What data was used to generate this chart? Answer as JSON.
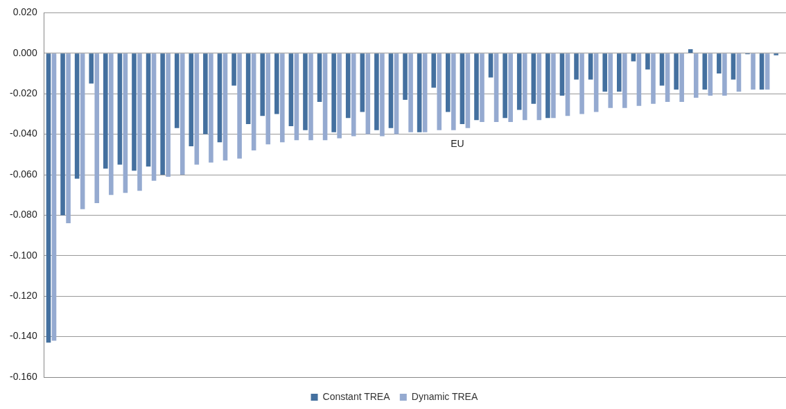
{
  "chart_data": {
    "type": "bar",
    "categories": [
      null,
      null,
      null,
      null,
      null,
      null,
      null,
      null,
      null,
      null,
      null,
      null,
      null,
      null,
      null,
      null,
      null,
      null,
      null,
      null,
      null,
      null,
      null,
      null,
      null,
      null,
      null,
      null,
      null,
      null,
      null,
      null,
      null,
      null,
      null,
      null,
      null,
      null,
      null,
      null,
      null,
      null,
      null,
      null,
      null,
      null,
      null,
      null,
      null,
      null,
      null,
      null
    ],
    "series": [
      {
        "name": "Constant TREA",
        "color": "#44709f",
        "values": [
          -0.143,
          -0.08,
          -0.062,
          -0.015,
          -0.057,
          -0.055,
          -0.058,
          -0.056,
          -0.06,
          -0.037,
          -0.046,
          -0.04,
          -0.044,
          -0.016,
          -0.035,
          -0.031,
          -0.03,
          -0.036,
          -0.038,
          -0.024,
          -0.039,
          -0.032,
          -0.029,
          -0.038,
          -0.037,
          -0.023,
          -0.039,
          -0.017,
          -0.029,
          -0.035,
          -0.033,
          -0.012,
          -0.032,
          -0.028,
          -0.025,
          -0.032,
          -0.021,
          -0.013,
          -0.013,
          -0.019,
          -0.019,
          -0.004,
          -0.008,
          -0.016,
          -0.018,
          0.002,
          -0.018,
          -0.01,
          -0.013,
          -0.0005,
          -0.018,
          -0.001
        ]
      },
      {
        "name": "Dynamic TREA",
        "color": "#95aad0",
        "values": [
          -0.142,
          -0.084,
          -0.077,
          -0.074,
          -0.07,
          -0.069,
          -0.068,
          -0.063,
          -0.061,
          -0.06,
          -0.055,
          -0.054,
          -0.053,
          -0.052,
          -0.048,
          -0.045,
          -0.044,
          -0.043,
          -0.043,
          -0.043,
          -0.042,
          -0.041,
          -0.04,
          -0.041,
          -0.04,
          -0.039,
          -0.039,
          -0.038,
          -0.038,
          -0.037,
          -0.034,
          -0.034,
          -0.034,
          -0.033,
          -0.033,
          -0.032,
          -0.031,
          -0.03,
          -0.029,
          -0.027,
          -0.027,
          -0.026,
          -0.025,
          -0.024,
          -0.024,
          -0.022,
          -0.021,
          -0.021,
          -0.019,
          -0.018,
          -0.018,
          null
        ]
      }
    ],
    "ylim": [
      -0.16,
      0.02
    ],
    "yticks": [
      {
        "value": -0.16,
        "label": "-0.160"
      },
      {
        "value": -0.14,
        "label": "-0.140"
      },
      {
        "value": -0.12,
        "label": "-0.120"
      },
      {
        "value": -0.1,
        "label": "-0.100"
      },
      {
        "value": -0.08,
        "label": "-0.080"
      },
      {
        "value": -0.06,
        "label": "-0.060"
      },
      {
        "value": -0.04,
        "label": "-0.040"
      },
      {
        "value": -0.02,
        "label": "-0.020"
      },
      {
        "value": 0,
        "label": "0.000"
      },
      {
        "value": 0.02,
        "label": "0.020"
      }
    ],
    "annotations": [
      "EU"
    ],
    "grid": "y",
    "legend": "bottom",
    "tick_labels": "y"
  }
}
